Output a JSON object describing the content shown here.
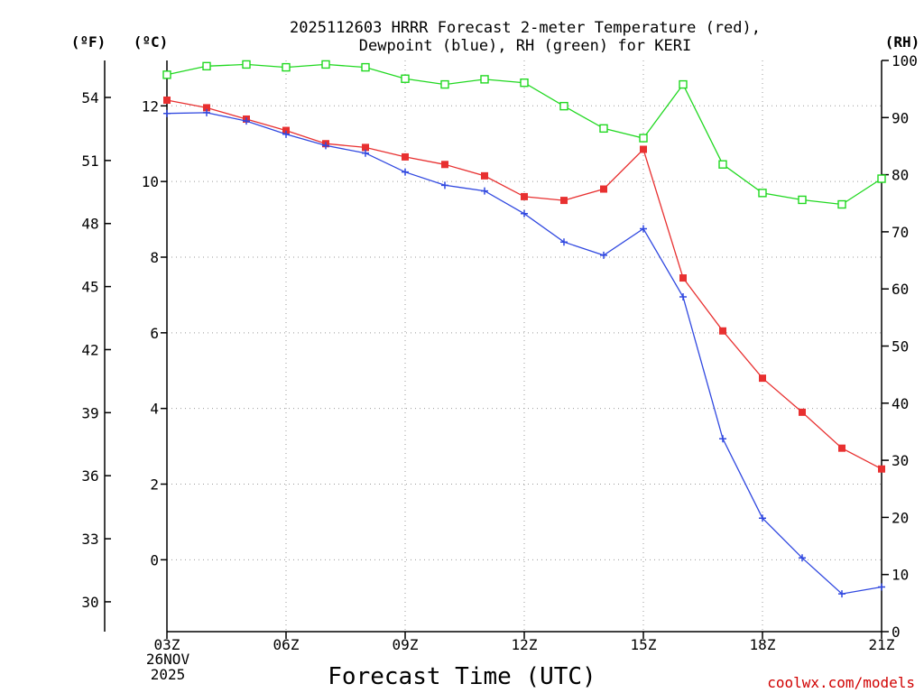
{
  "chart_data": {
    "type": "line",
    "title_line1": "2025112603 HRRR Forecast 2-meter Temperature (red),",
    "title_line2": "Dewpoint (blue), RH (green) for KERI",
    "xlabel": "Forecast Time (UTC)",
    "x_tick_labels": [
      "03Z",
      "06Z",
      "09Z",
      "12Z",
      "15Z",
      "18Z",
      "21Z"
    ],
    "x_tick_hours": [
      3,
      6,
      9,
      12,
      15,
      18,
      21
    ],
    "date_line1": "26NOV",
    "date_line2": "2025",
    "xlim": [
      3,
      21
    ],
    "x": [
      3,
      4,
      5,
      6,
      7,
      8,
      9,
      10,
      11,
      12,
      13,
      14,
      15,
      16,
      17,
      18,
      19,
      20,
      21
    ],
    "unit_f": "(ºF)",
    "unit_c": "(ºC)",
    "unit_rh": "(RH)",
    "ylim_c": [
      -1.9,
      13.2
    ],
    "yticks_c": [
      0,
      2,
      4,
      6,
      8,
      10,
      12
    ],
    "yticks_f": [
      30,
      33,
      36,
      39,
      42,
      45,
      48,
      51,
      54
    ],
    "ylim_rh": [
      0,
      100
    ],
    "yticks_rh": [
      0,
      10,
      20,
      30,
      40,
      50,
      60,
      70,
      80,
      90,
      100
    ],
    "series": [
      {
        "name": "Temperature",
        "axis": "c",
        "color": "#e83030",
        "marker": "filled-square",
        "values": [
          12.15,
          11.95,
          11.65,
          11.35,
          11.0,
          10.9,
          10.65,
          10.45,
          10.15,
          9.6,
          9.5,
          9.8,
          10.85,
          7.45,
          6.05,
          4.8,
          3.9,
          2.95,
          2.4
        ]
      },
      {
        "name": "Dewpoint",
        "axis": "c",
        "color": "#3048e0",
        "marker": "plus",
        "values": [
          11.8,
          11.82,
          11.6,
          11.25,
          10.95,
          10.75,
          10.25,
          9.9,
          9.75,
          9.15,
          8.4,
          8.05,
          8.75,
          6.95,
          3.2,
          1.1,
          0.05,
          -0.9,
          -0.72
        ]
      },
      {
        "name": "RH",
        "axis": "rh",
        "color": "#20d820",
        "marker": "open-square",
        "values": [
          97.5,
          99,
          99.3,
          98.8,
          99.3,
          98.8,
          96.8,
          95.8,
          96.7,
          96.1,
          92,
          88.1,
          86.4,
          95.8,
          81.8,
          76.8,
          75.6,
          74.8,
          79.3
        ]
      }
    ],
    "credit": "coolwx.com/models"
  }
}
